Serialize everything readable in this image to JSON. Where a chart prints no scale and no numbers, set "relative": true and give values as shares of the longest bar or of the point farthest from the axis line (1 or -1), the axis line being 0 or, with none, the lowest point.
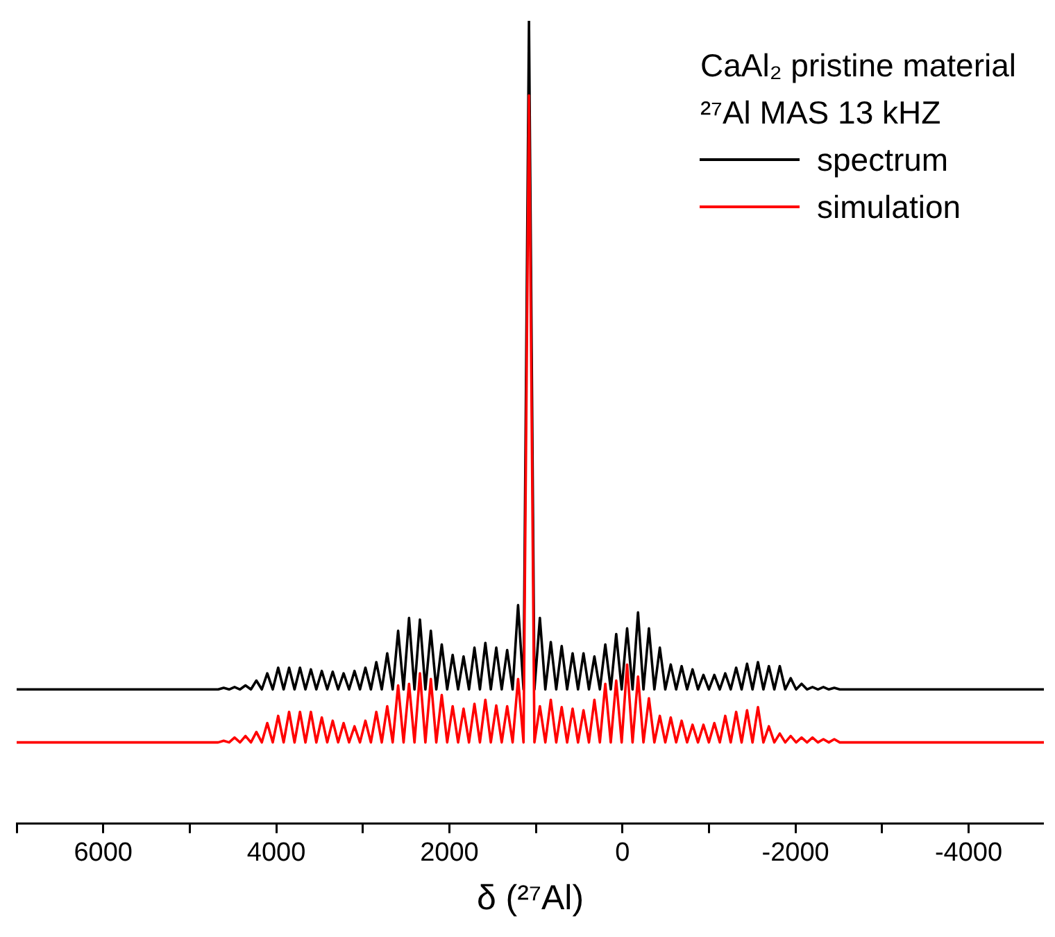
{
  "chart_data": {
    "type": "line",
    "relative": true,
    "xlabel": "δ (²⁷Al)",
    "annotations": [
      "CaAl₂ pristine material",
      "²⁷Al MAS 13 kHZ"
    ],
    "legend": "top right",
    "marker": "none",
    "grid": false,
    "xlim": [
      7000,
      -4870
    ],
    "xticks": [
      {
        "value": 7000,
        "label": null
      },
      6000,
      {
        "value": 5000,
        "label": null
      },
      4000,
      {
        "value": 3000,
        "label": null
      },
      2000,
      {
        "value": 1000,
        "label": null
      },
      0,
      {
        "value": -1000,
        "label": null
      },
      -2000,
      {
        "value": -3000,
        "label": null
      },
      -4000
    ],
    "x": [
      7000,
      4671,
      4608,
      4545,
      4482,
      4419,
      4356,
      4293,
      4230,
      4167,
      4104,
      4041,
      3978,
      3915,
      3852,
      3789,
      3726,
      3663,
      3600,
      3537,
      3474,
      3411,
      3348,
      3285,
      3222,
      3159,
      3096,
      3033,
      2970,
      2907,
      2844,
      2781,
      2718,
      2655,
      2592,
      2529,
      2466,
      2403,
      2340,
      2277,
      2214,
      2151,
      2088,
      2025,
      1962,
      1899,
      1836,
      1773,
      1710,
      1647,
      1584,
      1521,
      1458,
      1395,
      1332,
      1269,
      1206,
      1143,
      1080,
      1017,
      954,
      891,
      828,
      765,
      702,
      639,
      576,
      513,
      450,
      387,
      324,
      261,
      198,
      135,
      72,
      9,
      -54,
      -117,
      -180,
      -243,
      -306,
      -369,
      -432,
      -495,
      -558,
      -621,
      -684,
      -747,
      -810,
      -873,
      -936,
      -999,
      -1062,
      -1125,
      -1188,
      -1251,
      -1314,
      -1377,
      -1440,
      -1503,
      -1566,
      -1629,
      -1692,
      -1755,
      -1818,
      -1881,
      -1944,
      -2007,
      -2070,
      -2133,
      -2196,
      -2259,
      -2322,
      -2385,
      -2448,
      -2511,
      -4870
    ],
    "series": [
      {
        "name": "spectrum",
        "color": "#000000",
        "values": [
          0.167,
          0.167,
          0.169,
          0.167,
          0.17,
          0.167,
          0.172,
          0.167,
          0.178,
          0.167,
          0.187,
          0.167,
          0.194,
          0.167,
          0.194,
          0.167,
          0.194,
          0.167,
          0.192,
          0.167,
          0.19,
          0.167,
          0.189,
          0.167,
          0.187,
          0.167,
          0.19,
          0.167,
          0.194,
          0.167,
          0.201,
          0.167,
          0.212,
          0.167,
          0.24,
          0.167,
          0.256,
          0.167,
          0.254,
          0.167,
          0.24,
          0.167,
          0.223,
          0.167,
          0.21,
          0.167,
          0.208,
          0.167,
          0.219,
          0.167,
          0.225,
          0.167,
          0.219,
          0.167,
          0.216,
          0.167,
          0.272,
          0.167,
          1,
          0.167,
          0.256,
          0.167,
          0.226,
          0.167,
          0.221,
          0.167,
          0.212,
          0.167,
          0.212,
          0.167,
          0.208,
          0.167,
          0.223,
          0.167,
          0.236,
          0.167,
          0.243,
          0.167,
          0.263,
          0.167,
          0.243,
          0.167,
          0.219,
          0.167,
          0.198,
          0.167,
          0.196,
          0.167,
          0.192,
          0.167,
          0.185,
          0.167,
          0.185,
          0.167,
          0.187,
          0.167,
          0.194,
          0.167,
          0.199,
          0.167,
          0.201,
          0.167,
          0.196,
          0.167,
          0.196,
          0.167,
          0.181,
          0.167,
          0.174,
          0.167,
          0.17,
          0.167,
          0.17,
          0.167,
          0.169,
          0.167,
          0.167
        ]
      },
      {
        "name": "simulation",
        "color": "#ff0000",
        "values": [
          0.101,
          0.101,
          0.103,
          0.101,
          0.107,
          0.101,
          0.109,
          0.101,
          0.114,
          0.101,
          0.125,
          0.101,
          0.134,
          0.101,
          0.139,
          0.101,
          0.139,
          0.101,
          0.139,
          0.101,
          0.132,
          0.101,
          0.128,
          0.101,
          0.125,
          0.101,
          0.121,
          0.101,
          0.128,
          0.101,
          0.139,
          0.101,
          0.146,
          0.101,
          0.172,
          0.101,
          0.174,
          0.101,
          0.187,
          0.101,
          0.18,
          0.101,
          0.16,
          0.101,
          0.146,
          0.101,
          0.143,
          0.101,
          0.149,
          0.101,
          0.154,
          0.101,
          0.147,
          0.101,
          0.146,
          0.101,
          0.18,
          0.101,
          0.907,
          0.101,
          0.146,
          0.101,
          0.154,
          0.101,
          0.145,
          0.101,
          0.143,
          0.101,
          0.141,
          0.101,
          0.154,
          0.101,
          0.174,
          0.101,
          0.178,
          0.101,
          0.198,
          0.101,
          0.183,
          0.101,
          0.156,
          0.101,
          0.134,
          0.101,
          0.132,
          0.101,
          0.128,
          0.101,
          0.123,
          0.101,
          0.123,
          0.101,
          0.125,
          0.101,
          0.134,
          0.101,
          0.139,
          0.101,
          0.141,
          0.101,
          0.145,
          0.101,
          0.121,
          0.101,
          0.112,
          0.101,
          0.109,
          0.101,
          0.107,
          0.101,
          0.107,
          0.101,
          0.105,
          0.101,
          0.105,
          0.101,
          0.101
        ]
      }
    ]
  }
}
